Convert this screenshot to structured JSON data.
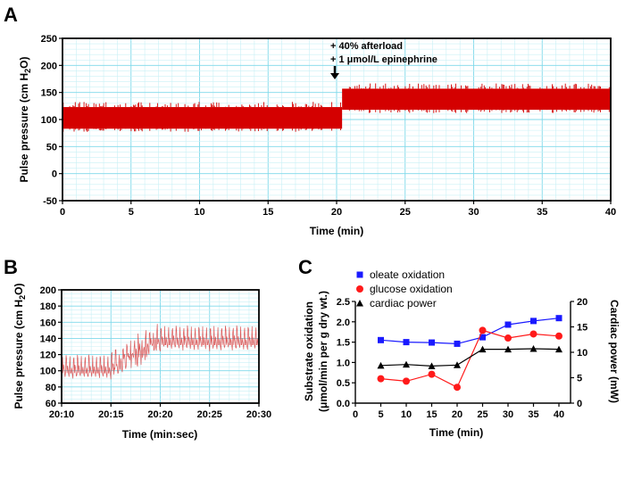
{
  "panels": {
    "a": "A",
    "b": "B",
    "c": "C"
  },
  "chart_data": [
    {
      "id": "A",
      "type": "line",
      "title": "",
      "xlabel": "Time (min)",
      "ylabel": "Pulse pressure (cm H2O)",
      "xlim": [
        0,
        40
      ],
      "ylim": [
        -50,
        250
      ],
      "x_ticks": [
        "0",
        "5",
        "10",
        "15",
        "20",
        "25",
        "30",
        "35",
        "40"
      ],
      "y_ticks": [
        "-50",
        "0",
        "50",
        "100",
        "150",
        "200",
        "250"
      ],
      "grid": true,
      "series": [
        {
          "name": "pulse pressure band",
          "color": "#d40000",
          "segments": [
            {
              "x_start": 0,
              "x_end": 20.4,
              "low": 83,
              "high": 123
            },
            {
              "x_start": 20.4,
              "x_end": 40,
              "low": 118,
              "high": 157
            }
          ]
        }
      ],
      "annotation": {
        "lines": [
          "+ 40% afterload",
          "+ 1 μmol/L epinephrine"
        ],
        "x": 20.4
      }
    },
    {
      "id": "B",
      "type": "line",
      "xlabel": "Time (min:sec)",
      "ylabel": "Pulse pressure (cm H2O)",
      "ylim": [
        60,
        200
      ],
      "x_ticks": [
        "20:10",
        "20:15",
        "20:20",
        "20:25",
        "20:30"
      ],
      "y_ticks": [
        "60",
        "80",
        "100",
        "120",
        "140",
        "160",
        "180",
        "200"
      ],
      "grid": true,
      "series": [
        {
          "name": "pulse pressure trace",
          "color": "#d40000",
          "phases": [
            {
              "t_start": 0,
              "t_end": 5,
              "diastolic": 89,
              "systolic": 120
            },
            {
              "t_start": 5,
              "t_end": 10,
              "diastolic": "89→130",
              "systolic": "120→158"
            },
            {
              "t_start": 10,
              "t_end": 20,
              "diastolic": 124,
              "systolic": 156
            }
          ]
        }
      ]
    },
    {
      "id": "C",
      "type": "line",
      "xlabel": "Time (min)",
      "ylabel": "Substrate oxidation",
      "ylabel2": "(μmol/min per g dry wt.)",
      "y2label": "Cardiac power (mW)",
      "x_ticks": [
        "0",
        "5",
        "10",
        "15",
        "20",
        "25",
        "30",
        "35",
        "40"
      ],
      "y_ticks": [
        "0.0",
        "0.5",
        "1.0",
        "1.5",
        "2.0",
        "2.5"
      ],
      "y2_ticks": [
        "0",
        "5",
        "10",
        "15",
        "20"
      ],
      "xlim": [
        0,
        40
      ],
      "ylim": [
        0,
        2.5
      ],
      "y2lim": [
        0,
        20
      ],
      "x": [
        5,
        10,
        15,
        20,
        25,
        30,
        35,
        40
      ],
      "series": [
        {
          "name": "oleate oxidation",
          "color": "#1a1aff",
          "marker": "square",
          "axis": "left",
          "values": [
            1.55,
            1.5,
            1.49,
            1.46,
            1.62,
            1.93,
            2.02,
            2.09
          ]
        },
        {
          "name": "glucose oxidation",
          "color": "#ff1a1a",
          "marker": "circle",
          "axis": "left",
          "values": [
            0.6,
            0.54,
            0.71,
            0.39,
            1.79,
            1.6,
            1.7,
            1.65
          ]
        },
        {
          "name": "cardiac power",
          "color": "#000000",
          "marker": "triangle",
          "axis": "right",
          "values": [
            7.4,
            7.6,
            7.3,
            7.5,
            10.6,
            10.6,
            10.7,
            10.6
          ]
        }
      ]
    }
  ]
}
